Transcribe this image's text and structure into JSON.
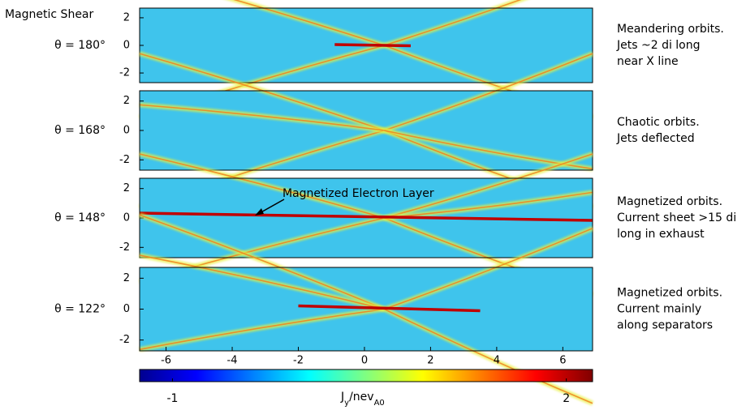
{
  "header": "Magnetic Shear",
  "annotation": "Magnetized Electron Layer",
  "colorbar": {
    "label": [
      "J",
      "y",
      "/nev",
      "A0"
    ],
    "clim": [
      -1.25,
      2.2
    ],
    "ticks": [
      -1,
      2
    ],
    "colors": [
      "#00008f",
      "#0000ff",
      "#0080ff",
      "#00ffff",
      "#80ff80",
      "#ffff00",
      "#ff8000",
      "#ff0000",
      "#800000"
    ]
  },
  "chart_data": [
    {
      "type": "heatmap",
      "label": "θ = 180°",
      "description": [
        "Meandering orbits.",
        "Jets ~2 di long",
        "near X line"
      ],
      "xlim": [
        -6.8,
        6.9
      ],
      "ylim": [
        -2.7,
        2.7
      ],
      "yticks": [
        -2,
        0,
        2
      ]
    },
    {
      "type": "heatmap",
      "label": "θ = 168°",
      "description": [
        "Chaotic orbits.",
        "Jets deflected"
      ],
      "xlim": [
        -6.8,
        6.9
      ],
      "ylim": [
        -2.7,
        2.7
      ],
      "yticks": [
        -2,
        0,
        2
      ]
    },
    {
      "type": "heatmap",
      "label": "θ = 148°",
      "description": [
        "Magnetized orbits.",
        "Current sheet >15 di",
        "long in exhaust"
      ],
      "xlim": [
        -6.8,
        6.9
      ],
      "ylim": [
        -2.7,
        2.7
      ],
      "yticks": [
        -2,
        0,
        2
      ]
    },
    {
      "type": "heatmap",
      "label": "θ = 122°",
      "description": [
        "Magnetized orbits.",
        "Current mainly",
        "along separators"
      ],
      "xlim": [
        -6.8,
        6.9
      ],
      "ylim": [
        -2.7,
        2.7
      ],
      "yticks": [
        -2,
        0,
        2
      ],
      "xticks": [
        -6,
        -4,
        -2,
        0,
        2,
        4,
        6
      ]
    }
  ]
}
